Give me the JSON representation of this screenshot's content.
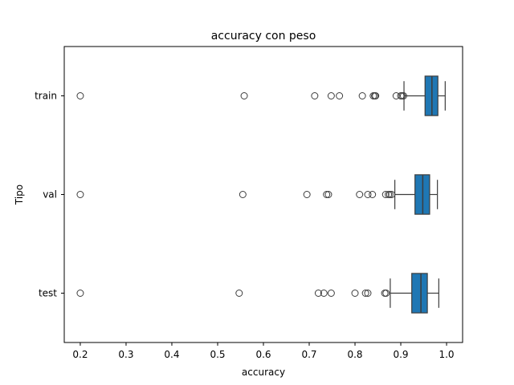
{
  "chart_data": {
    "type": "box",
    "orientation": "horizontal",
    "title": "accuracy con peso",
    "xlabel": "accuracy",
    "ylabel": "Tipo",
    "xlim": [
      0.165,
      1.035
    ],
    "xticks": [
      0.2,
      0.3,
      0.4,
      0.5,
      0.6,
      0.7,
      0.8,
      0.9,
      1.0
    ],
    "xtick_labels": [
      "0.2",
      "0.3",
      "0.4",
      "0.5",
      "0.6",
      "0.7",
      "0.8",
      "0.9",
      "1.0"
    ],
    "categories": [
      "train",
      "val",
      "test"
    ],
    "box_color": "#1f77b4",
    "grid": false,
    "boxes": [
      {
        "category": "train",
        "whisker_low": 0.907,
        "q1": 0.953,
        "median": 0.968,
        "q3": 0.981,
        "whisker_high": 0.997,
        "outliers": [
          0.2,
          0.558,
          0.712,
          0.748,
          0.766,
          0.816,
          0.84,
          0.843,
          0.845,
          0.89,
          0.9,
          0.903,
          0.906
        ]
      },
      {
        "category": "val",
        "whisker_low": 0.887,
        "q1": 0.931,
        "median": 0.948,
        "q3": 0.963,
        "whisker_high": 0.98,
        "outliers": [
          0.2,
          0.555,
          0.695,
          0.738,
          0.742,
          0.81,
          0.828,
          0.838,
          0.867,
          0.873,
          0.876,
          0.88
        ]
      },
      {
        "category": "test",
        "whisker_low": 0.877,
        "q1": 0.924,
        "median": 0.944,
        "q3": 0.958,
        "whisker_high": 0.983,
        "outliers": [
          0.2,
          0.547,
          0.72,
          0.732,
          0.748,
          0.8,
          0.823,
          0.828,
          0.865,
          0.868
        ]
      }
    ]
  }
}
